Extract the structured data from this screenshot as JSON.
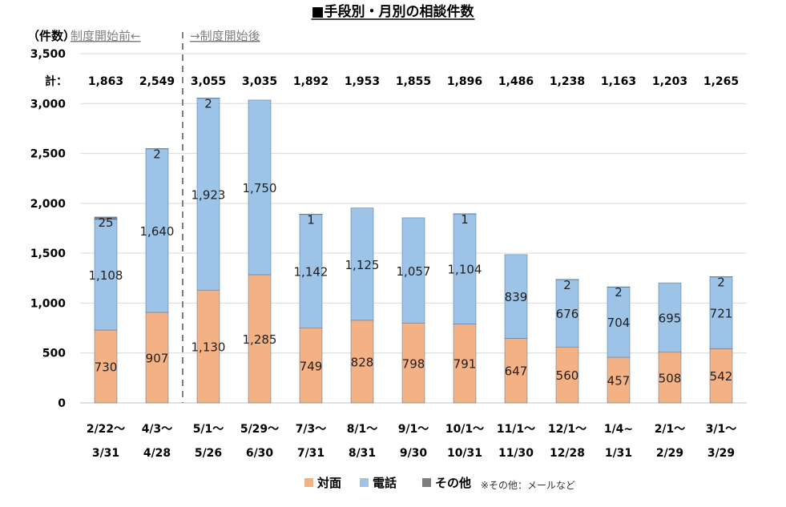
{
  "chart_data": {
    "type": "bar",
    "stacked": true,
    "title": "■手段別・月別の相談件数",
    "unit_label": "（件数）",
    "period_before": "制度開始前←",
    "period_after": "→制度開始後",
    "total_prefix": "計：",
    "categories": [
      [
        "2/22～",
        "3/31"
      ],
      [
        "4/3～",
        "4/28"
      ],
      [
        "5/1～",
        "5/26"
      ],
      [
        "5/29～",
        "6/30"
      ],
      [
        "7/3～",
        "7/31"
      ],
      [
        "8/1～",
        "8/31"
      ],
      [
        "9/1～",
        "9/30"
      ],
      [
        "10/1～",
        "10/31"
      ],
      [
        "11/1～",
        "11/30"
      ],
      [
        "12/1～",
        "12/28"
      ],
      [
        "1/4~",
        "1/31"
      ],
      [
        "2/1～",
        "2/29"
      ],
      [
        "3/1～",
        "3/29"
      ]
    ],
    "series": [
      {
        "name": "対面",
        "color": "#f4b183",
        "values": [
          730,
          907,
          1130,
          1285,
          749,
          828,
          798,
          791,
          647,
          560,
          457,
          508,
          542
        ]
      },
      {
        "name": "電話",
        "color": "#9dc3e6",
        "values": [
          1108,
          1640,
          1923,
          1750,
          1142,
          1125,
          1057,
          1104,
          839,
          676,
          704,
          695,
          721
        ]
      },
      {
        "name": "その他",
        "color": "#7f7f7f",
        "values": [
          25,
          2,
          2,
          0,
          1,
          0,
          0,
          1,
          0,
          2,
          2,
          0,
          2
        ]
      }
    ],
    "segment_labels": [
      [
        "730",
        "907",
        "1,130",
        "1,285",
        "749",
        "828",
        "798",
        "791",
        "647",
        "560",
        "457",
        "508",
        "542"
      ],
      [
        "1,108",
        "1,640",
        "1,923",
        "1,750",
        "1,142",
        "1,125",
        "1,057",
        "1,104",
        "839",
        "676",
        "704",
        "695",
        "721"
      ],
      [
        "25",
        "2",
        "2",
        "",
        "1",
        "",
        "",
        "1",
        "",
        "2",
        "2",
        "",
        "2"
      ]
    ],
    "totals": [
      "1,863",
      "2,549",
      "3,055",
      "3,035",
      "1,892",
      "1,953",
      "1,855",
      "1,896",
      "1,486",
      "1,238",
      "1,163",
      "1,203",
      "1,265"
    ],
    "ylim": [
      0,
      3500
    ],
    "yticks": [
      "0",
      "500",
      "1,000",
      "1,500",
      "2,000",
      "2,500",
      "3,000",
      "3,500"
    ],
    "ytick_values": [
      0,
      500,
      1000,
      1500,
      2000,
      2500,
      3000,
      3500
    ],
    "divider_after_index": 1,
    "legend": {
      "items": [
        "対面",
        "電話",
        "その他"
      ],
      "note": "※その他：メールなど"
    }
  }
}
